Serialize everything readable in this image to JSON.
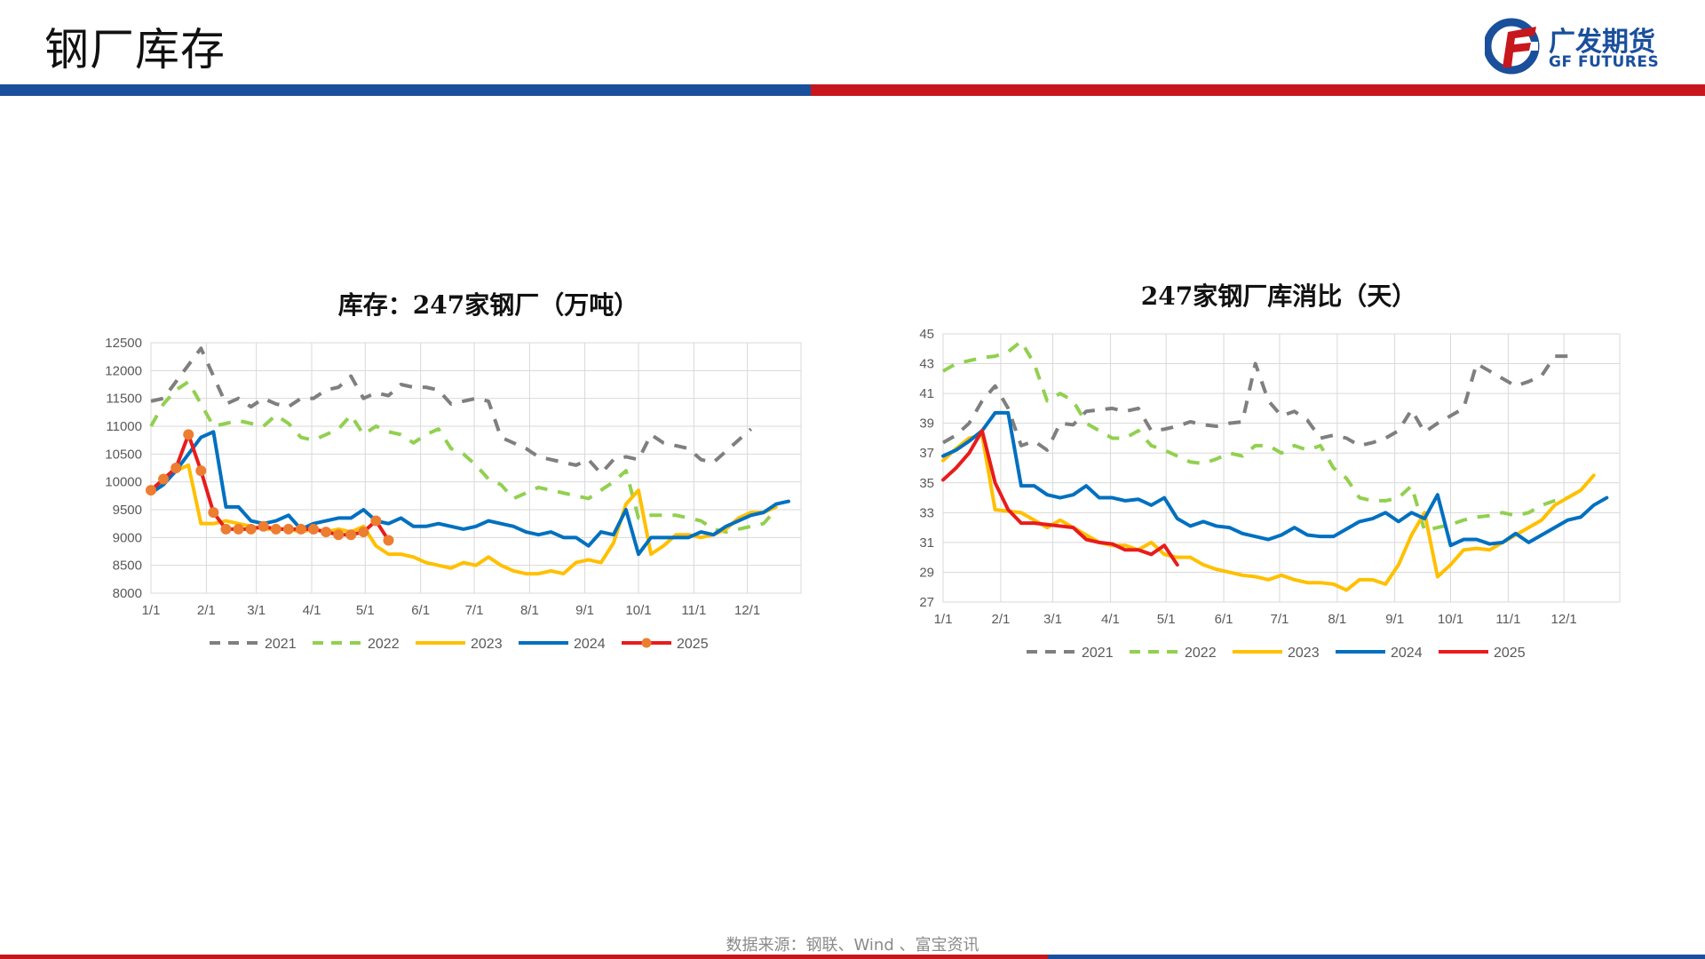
{
  "header": {
    "title": "钢厂库存",
    "logo_cn": "广发期货",
    "logo_en": "GF FUTURES"
  },
  "footer": {
    "source": "数据来源：钢联、Wind 、富宝资讯"
  },
  "colors": {
    "2021": "#7f7f7f",
    "2022": "#92d050",
    "2023": "#ffc000",
    "2024": "#0070c0",
    "2025": "#e81c1c",
    "marker2025": "#ed7d31"
  },
  "chart_data": [
    {
      "type": "line",
      "title": "库存：247家钢厂（万吨）",
      "xlabel": "",
      "ylabel": "",
      "xlim": [
        0,
        52
      ],
      "ylim": [
        8000,
        12500
      ],
      "yticks": [
        8000,
        8500,
        9000,
        9500,
        10000,
        10500,
        11000,
        11500,
        12000,
        12500
      ],
      "xticks": [
        {
          "label": "1/1",
          "x": 0
        },
        {
          "label": "2/1",
          "x": 4.43
        },
        {
          "label": "3/1",
          "x": 8.43
        },
        {
          "label": "4/1",
          "x": 12.86
        },
        {
          "label": "5/1",
          "x": 17.14
        },
        {
          "label": "6/1",
          "x": 21.57
        },
        {
          "label": "7/1",
          "x": 25.86
        },
        {
          "label": "8/1",
          "x": 30.29
        },
        {
          "label": "9/1",
          "x": 34.71
        },
        {
          "label": "10/1",
          "x": 39
        },
        {
          "label": "11/1",
          "x": 43.43
        },
        {
          "label": "12/1",
          "x": 47.71
        }
      ],
      "grid": true,
      "legend_position": "bottom",
      "series": [
        {
          "name": "2021",
          "style": "dashed",
          "values": [
            11450,
            11500,
            11800,
            12100,
            12400,
            11900,
            11400,
            11500,
            11350,
            11500,
            11400,
            11350,
            11500,
            11500,
            11650,
            11700,
            11900,
            11500,
            11600,
            11550,
            11750,
            11700,
            11700,
            11650,
            11400,
            11450,
            11500,
            11450,
            10800,
            10700,
            10600,
            10450,
            10400,
            10350,
            10300,
            10400,
            10150,
            10400,
            10450,
            10400,
            10850,
            10700,
            10650,
            10600,
            10400,
            10350,
            10550,
            10750,
            10950
          ]
        },
        {
          "name": "2022",
          "style": "dashed",
          "values": [
            11000,
            11400,
            11650,
            11800,
            11400,
            11000,
            11050,
            11100,
            11050,
            11000,
            11200,
            11050,
            10800,
            10750,
            10850,
            10950,
            11200,
            10850,
            11000,
            10900,
            10850,
            10700,
            10850,
            10950,
            10600,
            10500,
            10300,
            10050,
            9950,
            9700,
            9800,
            9900,
            9850,
            9800,
            9750,
            9700,
            9850,
            10000,
            10200,
            9350,
            9400,
            9400,
            9400,
            9350,
            9300,
            9150,
            9100,
            9150,
            9200,
            9250,
            9500
          ]
        },
        {
          "name": "2023",
          "style": "solid",
          "values": [
            9800,
            10050,
            10200,
            10300,
            9250,
            9250,
            9300,
            9250,
            9200,
            9150,
            9150,
            9150,
            9100,
            9150,
            9100,
            9150,
            9100,
            9200,
            8850,
            8700,
            8700,
            8650,
            8550,
            8500,
            8450,
            8550,
            8500,
            8650,
            8500,
            8400,
            8350,
            8350,
            8400,
            8350,
            8550,
            8600,
            8550,
            8900,
            9600,
            9850,
            8700,
            8850,
            9050,
            9050,
            9000,
            9050,
            9150,
            9350,
            9450,
            9450,
            9550
          ]
        },
        {
          "name": "2024",
          "style": "solid",
          "values": [
            9800,
            9950,
            10200,
            10500,
            10800,
            10900,
            9550,
            9550,
            9300,
            9250,
            9300,
            9400,
            9150,
            9250,
            9300,
            9350,
            9350,
            9500,
            9300,
            9250,
            9350,
            9200,
            9200,
            9250,
            9200,
            9150,
            9200,
            9300,
            9250,
            9200,
            9100,
            9050,
            9100,
            9000,
            9000,
            8850,
            9100,
            9050,
            9500,
            8700,
            9000,
            9000,
            9000,
            9000,
            9100,
            9050,
            9200,
            9300,
            9400,
            9450,
            9600,
            9650
          ]
        },
        {
          "name": "2025",
          "style": "solid-marker",
          "values": [
            9850,
            10050,
            10250,
            10850,
            10200,
            9450,
            9150,
            9150,
            9150,
            9200,
            9150,
            9150,
            9150,
            9150,
            9100,
            9050,
            9050,
            9100,
            9300,
            8950
          ]
        }
      ]
    },
    {
      "type": "line",
      "title": "247家钢厂库消比（天）",
      "xlabel": "",
      "ylabel": "",
      "xlim": [
        0,
        52
      ],
      "ylim": [
        27,
        45
      ],
      "yticks": [
        27,
        29,
        31,
        33,
        35,
        37,
        39,
        41,
        43,
        45
      ],
      "xticks": [
        {
          "label": "1/1",
          "x": 0
        },
        {
          "label": "2/1",
          "x": 4.43
        },
        {
          "label": "3/1",
          "x": 8.43
        },
        {
          "label": "4/1",
          "x": 12.86
        },
        {
          "label": "5/1",
          "x": 17.14
        },
        {
          "label": "6/1",
          "x": 21.57
        },
        {
          "label": "7/1",
          "x": 25.86
        },
        {
          "label": "8/1",
          "x": 30.29
        },
        {
          "label": "9/1",
          "x": 34.71
        },
        {
          "label": "10/1",
          "x": 39
        },
        {
          "label": "11/1",
          "x": 43.43
        },
        {
          "label": "12/1",
          "x": 47.71
        }
      ],
      "grid": true,
      "legend_position": "bottom",
      "series": [
        {
          "name": "2021",
          "style": "dashed",
          "values": [
            37.7,
            38.2,
            39.0,
            40.5,
            41.5,
            40.0,
            37.5,
            37.8,
            37.2,
            39.0,
            38.9,
            39.8,
            39.9,
            40.0,
            39.8,
            40.0,
            38.5,
            38.6,
            38.8,
            39.1,
            38.9,
            38.8,
            39.0,
            39.1,
            43.0,
            40.5,
            39.5,
            39.8,
            39.2,
            38.0,
            38.2,
            38.0,
            37.5,
            37.7,
            38.0,
            38.5,
            39.9,
            38.4,
            39.0,
            39.5,
            40.0,
            43.0,
            42.5,
            42.0,
            41.5,
            41.8,
            42.2,
            43.5,
            43.5
          ]
        },
        {
          "name": "2022",
          "style": "dashed",
          "values": [
            42.5,
            43.0,
            43.2,
            43.4,
            43.5,
            43.8,
            44.5,
            43.0,
            40.5,
            41.0,
            40.5,
            39.0,
            38.5,
            38.0,
            38.0,
            38.5,
            37.5,
            37.2,
            36.8,
            36.4,
            36.3,
            36.6,
            37.0,
            36.8,
            37.5,
            37.5,
            37.0,
            37.5,
            37.2,
            37.5,
            36.0,
            35.3,
            34.0,
            33.8,
            33.8,
            34.0,
            34.8,
            31.8,
            32.0,
            32.2,
            32.5,
            32.7,
            32.8,
            33.0,
            32.8,
            33.0,
            33.5,
            33.8,
            34.0,
            34.5
          ]
        },
        {
          "name": "2023",
          "style": "solid",
          "values": [
            36.5,
            37.3,
            38.0,
            38.2,
            33.2,
            33.1,
            33.0,
            32.5,
            32.0,
            32.5,
            32.0,
            31.5,
            31.0,
            30.8,
            30.8,
            30.5,
            31.0,
            30.2,
            30.0,
            30.0,
            29.5,
            29.2,
            29.0,
            28.8,
            28.7,
            28.5,
            28.8,
            28.5,
            28.3,
            28.3,
            28.2,
            27.8,
            28.5,
            28.5,
            28.2,
            29.5,
            31.5,
            33.0,
            28.7,
            29.5,
            30.5,
            30.6,
            30.5,
            31.0,
            31.5,
            32.0,
            32.5,
            33.5,
            34.0,
            34.5,
            35.5
          ]
        },
        {
          "name": "2024",
          "style": "solid",
          "values": [
            36.8,
            37.2,
            37.8,
            38.5,
            39.7,
            39.7,
            34.8,
            34.8,
            34.2,
            34.0,
            34.2,
            34.8,
            34.0,
            34.0,
            33.8,
            33.9,
            33.5,
            34.0,
            32.6,
            32.1,
            32.4,
            32.1,
            32.0,
            31.6,
            31.4,
            31.2,
            31.5,
            32.0,
            31.5,
            31.4,
            31.4,
            31.9,
            32.4,
            32.6,
            33.0,
            32.4,
            33.0,
            32.6,
            34.2,
            30.8,
            31.2,
            31.2,
            30.9,
            31.0,
            31.6,
            31.0,
            31.5,
            32.0,
            32.5,
            32.7,
            33.5,
            34.0
          ]
        },
        {
          "name": "2025",
          "style": "solid",
          "values": [
            35.2,
            36.0,
            37.0,
            38.5,
            35.0,
            33.2,
            32.3,
            32.3,
            32.2,
            32.1,
            32.0,
            31.2,
            31.0,
            30.9,
            30.5,
            30.5,
            30.2,
            30.8,
            29.5
          ]
        }
      ]
    }
  ]
}
